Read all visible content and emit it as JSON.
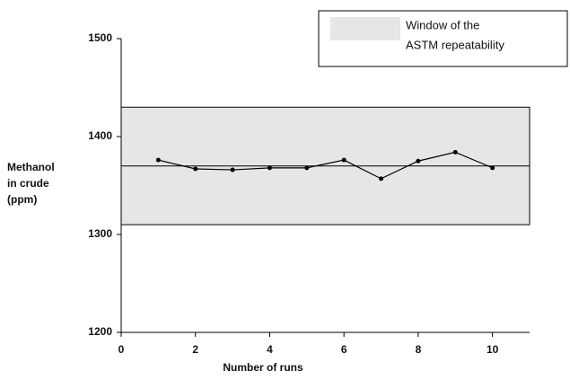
{
  "chart_data": {
    "type": "line",
    "xlabel": "Number of runs",
    "ylabel": [
      "Methanol",
      "in crude",
      "(ppm)"
    ],
    "xlim": [
      0,
      11
    ],
    "xticks": [
      0,
      2,
      4,
      6,
      8,
      10
    ],
    "ylim": [
      1200,
      1500
    ],
    "yticks": [
      1200,
      1300,
      1400,
      1500
    ],
    "band": {
      "name": [
        "Window of the",
        "ASTM repeatability"
      ],
      "range": [
        1310,
        1430
      ],
      "color": "#e6e6e6"
    },
    "reference_line": 1370,
    "series": [
      {
        "color": "#000000",
        "x": [
          1,
          2,
          3,
          4,
          5,
          6,
          7,
          8,
          9,
          10
        ],
        "values": [
          1376,
          1367,
          1366,
          1368,
          1368,
          1376,
          1357,
          1375,
          1384,
          1368
        ]
      }
    ]
  }
}
